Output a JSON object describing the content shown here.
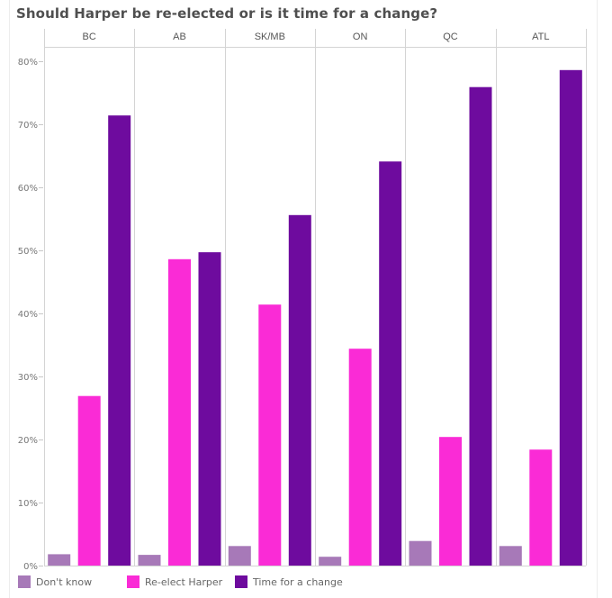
{
  "chart_data": {
    "type": "bar",
    "title": "Should Harper be re-elected or is it time for a change?",
    "xlabel": "",
    "ylabel": "",
    "categories": [
      "BC",
      "AB",
      "SK/MB",
      "ON",
      "QC",
      "ATL"
    ],
    "series": [
      {
        "name": "Don't know",
        "color": "#a779b8",
        "values": [
          1.8,
          1.7,
          3.1,
          1.4,
          3.9,
          3.1
        ]
      },
      {
        "name": "Re-elect Harper",
        "color": "#fa2bd6",
        "values": [
          26.9,
          48.6,
          41.4,
          34.4,
          20.4,
          18.4
        ]
      },
      {
        "name": "Time for a change",
        "color": "#6e0b9e",
        "values": [
          71.4,
          49.7,
          55.6,
          64.1,
          75.9,
          78.6
        ]
      }
    ],
    "ylim": [
      0,
      80
    ],
    "yticks": [
      0,
      10,
      20,
      30,
      40,
      50,
      60,
      70,
      80
    ],
    "ytick_labels": [
      "0%",
      "10%",
      "20%",
      "30%",
      "40%",
      "50%",
      "60%",
      "70%",
      "80%"
    ],
    "grid": false,
    "legend_position": "bottom-left",
    "layout": "faceted-by-region"
  }
}
